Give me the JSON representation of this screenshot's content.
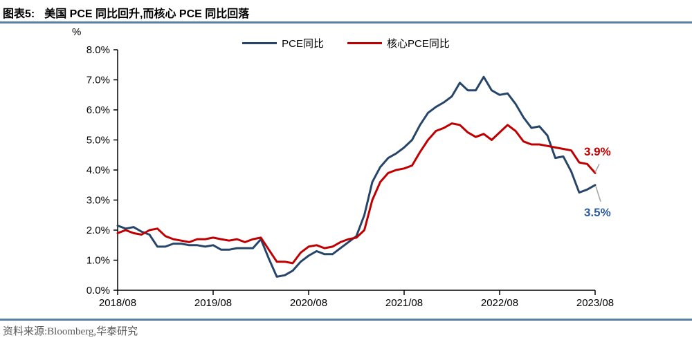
{
  "header": {
    "figure_label": "图表5:",
    "title": "美国 PCE 同比回升,而核心 PCE 同比回落"
  },
  "footer": {
    "source": "资料来源:Bloomberg,华泰研究"
  },
  "colors": {
    "rule_line": "#5a7fa6",
    "axis": "#000000",
    "leader_line": "#a6a6a6",
    "pce_line": "#274569",
    "core_pce_line": "#c00000",
    "pce_annotation": "#2f5d9b",
    "core_annotation": "#c00000"
  },
  "chart_data": {
    "type": "line",
    "title": "",
    "unit_label": "%",
    "xlabel": "",
    "ylabel": "%",
    "grid": false,
    "legend_position": "top-center",
    "ylim": [
      0,
      8
    ],
    "y_tick_labels": [
      "0.0%",
      "1.0%",
      "2.0%",
      "3.0%",
      "4.0%",
      "5.0%",
      "6.0%",
      "7.0%",
      "8.0%"
    ],
    "x_tick_labels": [
      "2018/08",
      "2019/08",
      "2020/08",
      "2021/08",
      "2022/08",
      "2023/08"
    ],
    "x_tick_indices": [
      0,
      12,
      24,
      36,
      48,
      60
    ],
    "x": [
      "2018/08",
      "2018/09",
      "2018/10",
      "2018/11",
      "2018/12",
      "2019/01",
      "2019/02",
      "2019/03",
      "2019/04",
      "2019/05",
      "2019/06",
      "2019/07",
      "2019/08",
      "2019/09",
      "2019/10",
      "2019/11",
      "2019/12",
      "2020/01",
      "2020/02",
      "2020/03",
      "2020/04",
      "2020/05",
      "2020/06",
      "2020/07",
      "2020/08",
      "2020/09",
      "2020/10",
      "2020/11",
      "2020/12",
      "2021/01",
      "2021/02",
      "2021/03",
      "2021/04",
      "2021/05",
      "2021/06",
      "2021/07",
      "2021/08",
      "2021/09",
      "2021/10",
      "2021/11",
      "2021/12",
      "2022/01",
      "2022/02",
      "2022/03",
      "2022/04",
      "2022/05",
      "2022/06",
      "2022/07",
      "2022/08",
      "2022/09",
      "2022/10",
      "2022/11",
      "2022/12",
      "2023/01",
      "2023/02",
      "2023/03",
      "2023/04",
      "2023/05",
      "2023/06",
      "2023/07",
      "2023/08"
    ],
    "series": [
      {
        "name": "PCE同比",
        "color": "#274569",
        "values": [
          2.15,
          2.05,
          2.1,
          1.95,
          1.85,
          1.45,
          1.45,
          1.55,
          1.55,
          1.5,
          1.5,
          1.45,
          1.5,
          1.35,
          1.35,
          1.4,
          1.4,
          1.4,
          1.7,
          1.05,
          0.45,
          0.5,
          0.65,
          0.95,
          1.15,
          1.3,
          1.2,
          1.2,
          1.4,
          1.6,
          1.8,
          2.5,
          3.6,
          4.1,
          4.4,
          4.55,
          4.75,
          5.0,
          5.5,
          5.9,
          6.1,
          6.25,
          6.45,
          6.9,
          6.65,
          6.65,
          7.1,
          6.65,
          6.5,
          6.55,
          6.2,
          5.75,
          5.4,
          5.45,
          5.15,
          4.4,
          4.45,
          3.95,
          3.25,
          3.35,
          3.5
        ]
      },
      {
        "name": "核心PCE同比",
        "color": "#c00000",
        "values": [
          1.9,
          2.0,
          1.9,
          1.85,
          2.0,
          2.05,
          1.8,
          1.7,
          1.65,
          1.6,
          1.7,
          1.7,
          1.75,
          1.7,
          1.65,
          1.7,
          1.6,
          1.7,
          1.75,
          1.35,
          0.95,
          0.95,
          0.9,
          1.25,
          1.45,
          1.5,
          1.4,
          1.45,
          1.6,
          1.7,
          1.75,
          2.0,
          3.0,
          3.6,
          3.9,
          4.0,
          4.05,
          4.15,
          4.6,
          5.0,
          5.3,
          5.4,
          5.55,
          5.5,
          5.25,
          5.1,
          5.2,
          5.0,
          5.25,
          5.5,
          5.3,
          4.95,
          4.85,
          4.85,
          4.8,
          4.75,
          4.7,
          4.65,
          4.25,
          4.2,
          3.9
        ]
      }
    ],
    "annotations": [
      {
        "text": "3.9%",
        "value": 3.9,
        "series": 1,
        "color": "#c00000",
        "placement": "above"
      },
      {
        "text": "3.5%",
        "value": 3.5,
        "series": 0,
        "color": "#2f5d9b",
        "placement": "below"
      }
    ]
  }
}
